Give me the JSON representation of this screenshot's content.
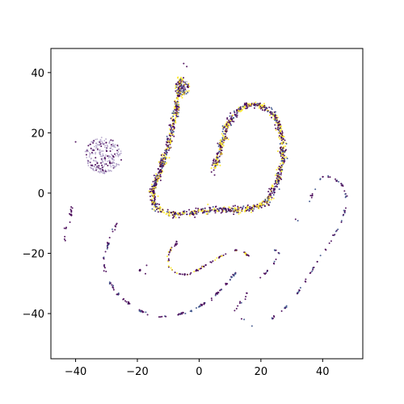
{
  "chart_data": {
    "type": "scatter",
    "title": "",
    "xlabel": "",
    "ylabel": "",
    "xlim": [
      -48,
      53
    ],
    "ylim": [
      -55,
      48
    ],
    "x_ticks": [
      -40,
      -20,
      0,
      20,
      40
    ],
    "y_ticks": [
      -40,
      -20,
      0,
      20,
      40
    ],
    "x_tick_labels": [
      "−40",
      "−20",
      "0",
      "20",
      "40"
    ],
    "y_tick_labels": [
      "−40",
      "−20",
      "0",
      "20",
      "40"
    ],
    "grid": false,
    "legend": "none",
    "colors": {
      "dark": "#440154",
      "mid": "#3b528b",
      "light": "#fde725",
      "lavender": "#9a86b8"
    },
    "clusters": [
      {
        "name": "left-blob",
        "shape": "disc",
        "center": [
          -31,
          12.5
        ],
        "radius": 6,
        "count": 260,
        "colors": [
          "lavender",
          "lavender",
          "lavender",
          "dark"
        ]
      },
      {
        "name": "main-curve",
        "shape": "path",
        "count": 1400,
        "spread": 0.9,
        "colors": [
          "dark",
          "dark",
          "mid",
          "light",
          "light",
          "dark"
        ],
        "path": [
          [
            -6,
            39
          ],
          [
            -6,
            35
          ],
          [
            -7,
            30
          ],
          [
            -8,
            25
          ],
          [
            -9,
            20
          ],
          [
            -10,
            15
          ],
          [
            -12,
            10
          ],
          [
            -13,
            6
          ],
          [
            -15,
            1
          ],
          [
            -15,
            -3
          ],
          [
            -13,
            -6
          ],
          [
            -9,
            -7
          ],
          [
            -4,
            -7
          ],
          [
            1,
            -6
          ],
          [
            6,
            -5.5
          ],
          [
            12,
            -5.5
          ],
          [
            18,
            -5
          ],
          [
            22,
            -3
          ],
          [
            25,
            3
          ],
          [
            27,
            10
          ],
          [
            27,
            18
          ],
          [
            25,
            25
          ],
          [
            21,
            29
          ],
          [
            16,
            29.5
          ],
          [
            12,
            27
          ],
          [
            9,
            22
          ],
          [
            7,
            15
          ],
          [
            5,
            8
          ]
        ]
      },
      {
        "name": "top-knot",
        "shape": "disc",
        "center": [
          -5.5,
          35
        ],
        "radius": 2.5,
        "count": 90,
        "colors": [
          "dark",
          "mid",
          "light",
          "lavender"
        ]
      },
      {
        "name": "right-curve",
        "shape": "path",
        "count": 140,
        "spread": 0.3,
        "colors": [
          "dark",
          "dark",
          "mid"
        ],
        "dashed": true,
        "path": [
          [
            35,
            -5
          ],
          [
            38,
            3
          ],
          [
            40,
            5.5
          ],
          [
            43,
            5.5
          ],
          [
            47,
            2
          ],
          [
            48,
            -3
          ],
          [
            46,
            -10
          ],
          [
            42,
            -17
          ],
          [
            38,
            -23
          ],
          [
            34,
            -30
          ],
          [
            30,
            -36
          ],
          [
            26,
            -40
          ],
          [
            23,
            -42
          ]
        ]
      },
      {
        "name": "bottom-arc",
        "shape": "path",
        "count": 220,
        "spread": 0.3,
        "colors": [
          "dark",
          "dark",
          "mid"
        ],
        "dashed": true,
        "path": [
          [
            -26,
            -9
          ],
          [
            -29,
            -15
          ],
          [
            -31,
            -22
          ],
          [
            -30,
            -28
          ],
          [
            -26,
            -34
          ],
          [
            -21,
            -38
          ],
          [
            -15,
            -41
          ],
          [
            -9,
            -41
          ],
          [
            -2,
            -39
          ],
          [
            4,
            -35
          ],
          [
            9,
            -30
          ],
          [
            13,
            -25
          ]
        ]
      },
      {
        "name": "inner-arc",
        "shape": "path",
        "count": 90,
        "spread": 0.25,
        "colors": [
          "dark",
          "dark",
          "light"
        ],
        "path": [
          [
            -7,
            -16
          ],
          [
            -10,
            -20
          ],
          [
            -10,
            -24
          ],
          [
            -7,
            -27
          ],
          [
            -3,
            -27
          ],
          [
            2,
            -24
          ],
          [
            7,
            -21
          ],
          [
            11,
            -19
          ],
          [
            14,
            -19
          ],
          [
            16,
            -21
          ]
        ]
      },
      {
        "name": "left-stubs",
        "shape": "path",
        "count": 40,
        "spread": 0.25,
        "colors": [
          "dark"
        ],
        "dashed": true,
        "path": [
          [
            -41,
            -3
          ],
          [
            -42,
            -10
          ],
          [
            -44,
            -13
          ],
          [
            -43,
            -17
          ]
        ]
      },
      {
        "name": "mid-stubs",
        "shape": "path",
        "count": 40,
        "spread": 0.25,
        "colors": [
          "dark"
        ],
        "dashed": true,
        "path": [
          [
            -20,
            -24
          ],
          [
            -19,
            -26
          ],
          [
            -17,
            -27
          ],
          [
            -3,
            -41
          ],
          [
            3,
            -49
          ],
          [
            4,
            -48
          ]
        ]
      },
      {
        "name": "right-stubs",
        "shape": "path",
        "count": 70,
        "spread": 0.25,
        "colors": [
          "dark",
          "mid"
        ],
        "dashed": true,
        "path": [
          [
            23,
            -18
          ],
          [
            26,
            -20
          ],
          [
            24,
            -24
          ],
          [
            21,
            -27
          ],
          [
            16,
            -31
          ],
          [
            15,
            -35
          ],
          [
            11,
            -39
          ],
          [
            17,
            -44
          ],
          [
            18,
            -45
          ],
          [
            30,
            -8
          ],
          [
            33,
            -10
          ],
          [
            37,
            -10
          ]
        ]
      },
      {
        "name": "outliers",
        "shape": "points",
        "colors": [
          "dark"
        ],
        "points": [
          [
            -5,
            43
          ],
          [
            -4,
            42
          ],
          [
            -40,
            17
          ],
          [
            4,
            7
          ],
          [
            5,
            6
          ],
          [
            -17,
            -24
          ],
          [
            11.5,
            -39
          ]
        ]
      }
    ]
  }
}
